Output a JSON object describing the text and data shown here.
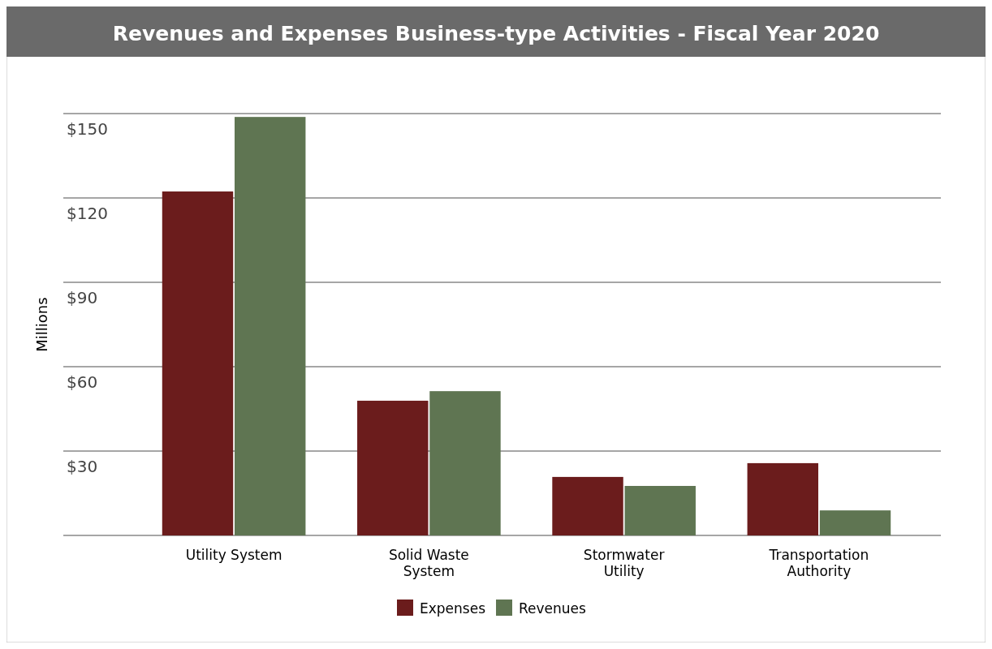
{
  "chart_data": {
    "type": "bar",
    "title": "Revenues and Expenses Business-type Activities - Fiscal Year 2020",
    "ylabel": "Millions",
    "categories": [
      "Utility System",
      "Solid Waste System",
      "Stormwater Utility",
      "Transportation Authority"
    ],
    "series": [
      {
        "name": "Expenses",
        "color": "#6b1c1c",
        "values": [
          122.3,
          47.9,
          20.8,
          25.7
        ]
      },
      {
        "name": "Revenues",
        "color": "#5f7552",
        "values": [
          148.8,
          51.3,
          17.6,
          8.9
        ]
      }
    ],
    "ylim": [
      0,
      150
    ],
    "yticks": [
      {
        "value": 0,
        "label": null
      },
      {
        "value": 30,
        "label": "$30"
      },
      {
        "value": 60,
        "label": "$60"
      },
      {
        "value": 90,
        "label": "$90"
      },
      {
        "value": 120,
        "label": "$120"
      },
      {
        "value": 150,
        "label": "$150"
      }
    ],
    "grid": "y",
    "legend": "bottom"
  }
}
